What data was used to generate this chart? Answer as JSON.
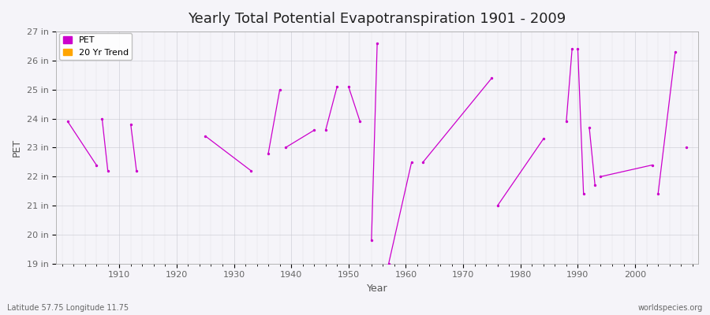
{
  "title": "Yearly Total Potential Evapotranspiration 1901 - 2009",
  "xlabel": "Year",
  "ylabel": "PET",
  "lat_lon_label": "Latitude 57.75 Longitude 11.75",
  "watermark": "worldspecies.org",
  "ylim": [
    19,
    27
  ],
  "xlim": [
    1899,
    2011
  ],
  "ytick_labels": [
    "19 in",
    "20 in",
    "21 in",
    "22 in",
    "23 in",
    "24 in",
    "25 in",
    "26 in",
    "27 in"
  ],
  "ytick_values": [
    19,
    20,
    21,
    22,
    23,
    24,
    25,
    26,
    27
  ],
  "xtick_values": [
    1910,
    1920,
    1930,
    1940,
    1950,
    1960,
    1970,
    1980,
    1990,
    2000
  ],
  "pet_color": "#CC00CC",
  "trend_color": "#FFA500",
  "background_color": "#F5F4F9",
  "pet_segments": [
    [
      [
        1901,
        23.9
      ],
      [
        1906,
        22.4
      ]
    ],
    [
      [
        1907,
        24.0
      ],
      [
        1908,
        22.2
      ]
    ],
    [
      [
        1912,
        23.8
      ],
      [
        1913,
        22.2
      ]
    ],
    [
      [
        1925,
        23.4
      ],
      [
        1933,
        22.2
      ]
    ],
    [
      [
        1936,
        22.8
      ],
      [
        1938,
        25.0
      ]
    ],
    [
      [
        1939,
        23.0
      ],
      [
        1944,
        23.6
      ]
    ],
    [
      [
        1946,
        23.6
      ],
      [
        1948,
        25.1
      ]
    ],
    [
      [
        1950,
        25.1
      ],
      [
        1952,
        23.9
      ]
    ],
    [
      [
        1954,
        19.8
      ],
      [
        1955,
        26.6
      ]
    ],
    [
      [
        1957,
        19.0
      ],
      [
        1961,
        22.5
      ]
    ],
    [
      [
        1963,
        22.5
      ],
      [
        1975,
        25.4
      ]
    ],
    [
      [
        1976,
        21.0
      ],
      [
        1984,
        23.3
      ]
    ],
    [
      [
        1988,
        23.9
      ],
      [
        1989,
        26.4
      ]
    ],
    [
      [
        1990,
        26.4
      ],
      [
        1991,
        21.4
      ]
    ],
    [
      [
        1992,
        23.7
      ],
      [
        1993,
        21.7
      ]
    ],
    [
      [
        1994,
        22.0
      ],
      [
        2003,
        22.4
      ]
    ],
    [
      [
        2004,
        21.4
      ],
      [
        2007,
        26.3
      ]
    ],
    [
      [
        2009,
        23.0
      ],
      null
    ]
  ],
  "pet_singles": [
    [
      1901,
      23.9
    ],
    [
      1906,
      22.4
    ],
    [
      1907,
      24.0
    ],
    [
      1908,
      22.2
    ],
    [
      1912,
      23.8
    ],
    [
      1913,
      22.2
    ],
    [
      1925,
      23.4
    ],
    [
      1933,
      22.2
    ],
    [
      1936,
      22.8
    ],
    [
      1938,
      25.0
    ],
    [
      1939,
      23.0
    ],
    [
      1944,
      23.6
    ],
    [
      1946,
      23.6
    ],
    [
      1948,
      25.1
    ],
    [
      1950,
      25.1
    ],
    [
      1952,
      23.9
    ],
    [
      1954,
      19.8
    ],
    [
      1955,
      26.6
    ],
    [
      1957,
      19.0
    ],
    [
      1961,
      22.5
    ],
    [
      1963,
      22.5
    ],
    [
      1975,
      25.4
    ],
    [
      1976,
      21.0
    ],
    [
      1984,
      23.3
    ],
    [
      1988,
      23.9
    ],
    [
      1989,
      26.4
    ],
    [
      1990,
      26.4
    ],
    [
      1991,
      21.4
    ],
    [
      1992,
      23.7
    ],
    [
      1993,
      21.7
    ],
    [
      1994,
      22.0
    ],
    [
      2003,
      22.4
    ],
    [
      2004,
      21.4
    ],
    [
      2007,
      26.3
    ],
    [
      2009,
      23.0
    ]
  ],
  "title_fontsize": 13,
  "axis_label_fontsize": 9,
  "tick_fontsize": 8,
  "legend_fontsize": 8
}
